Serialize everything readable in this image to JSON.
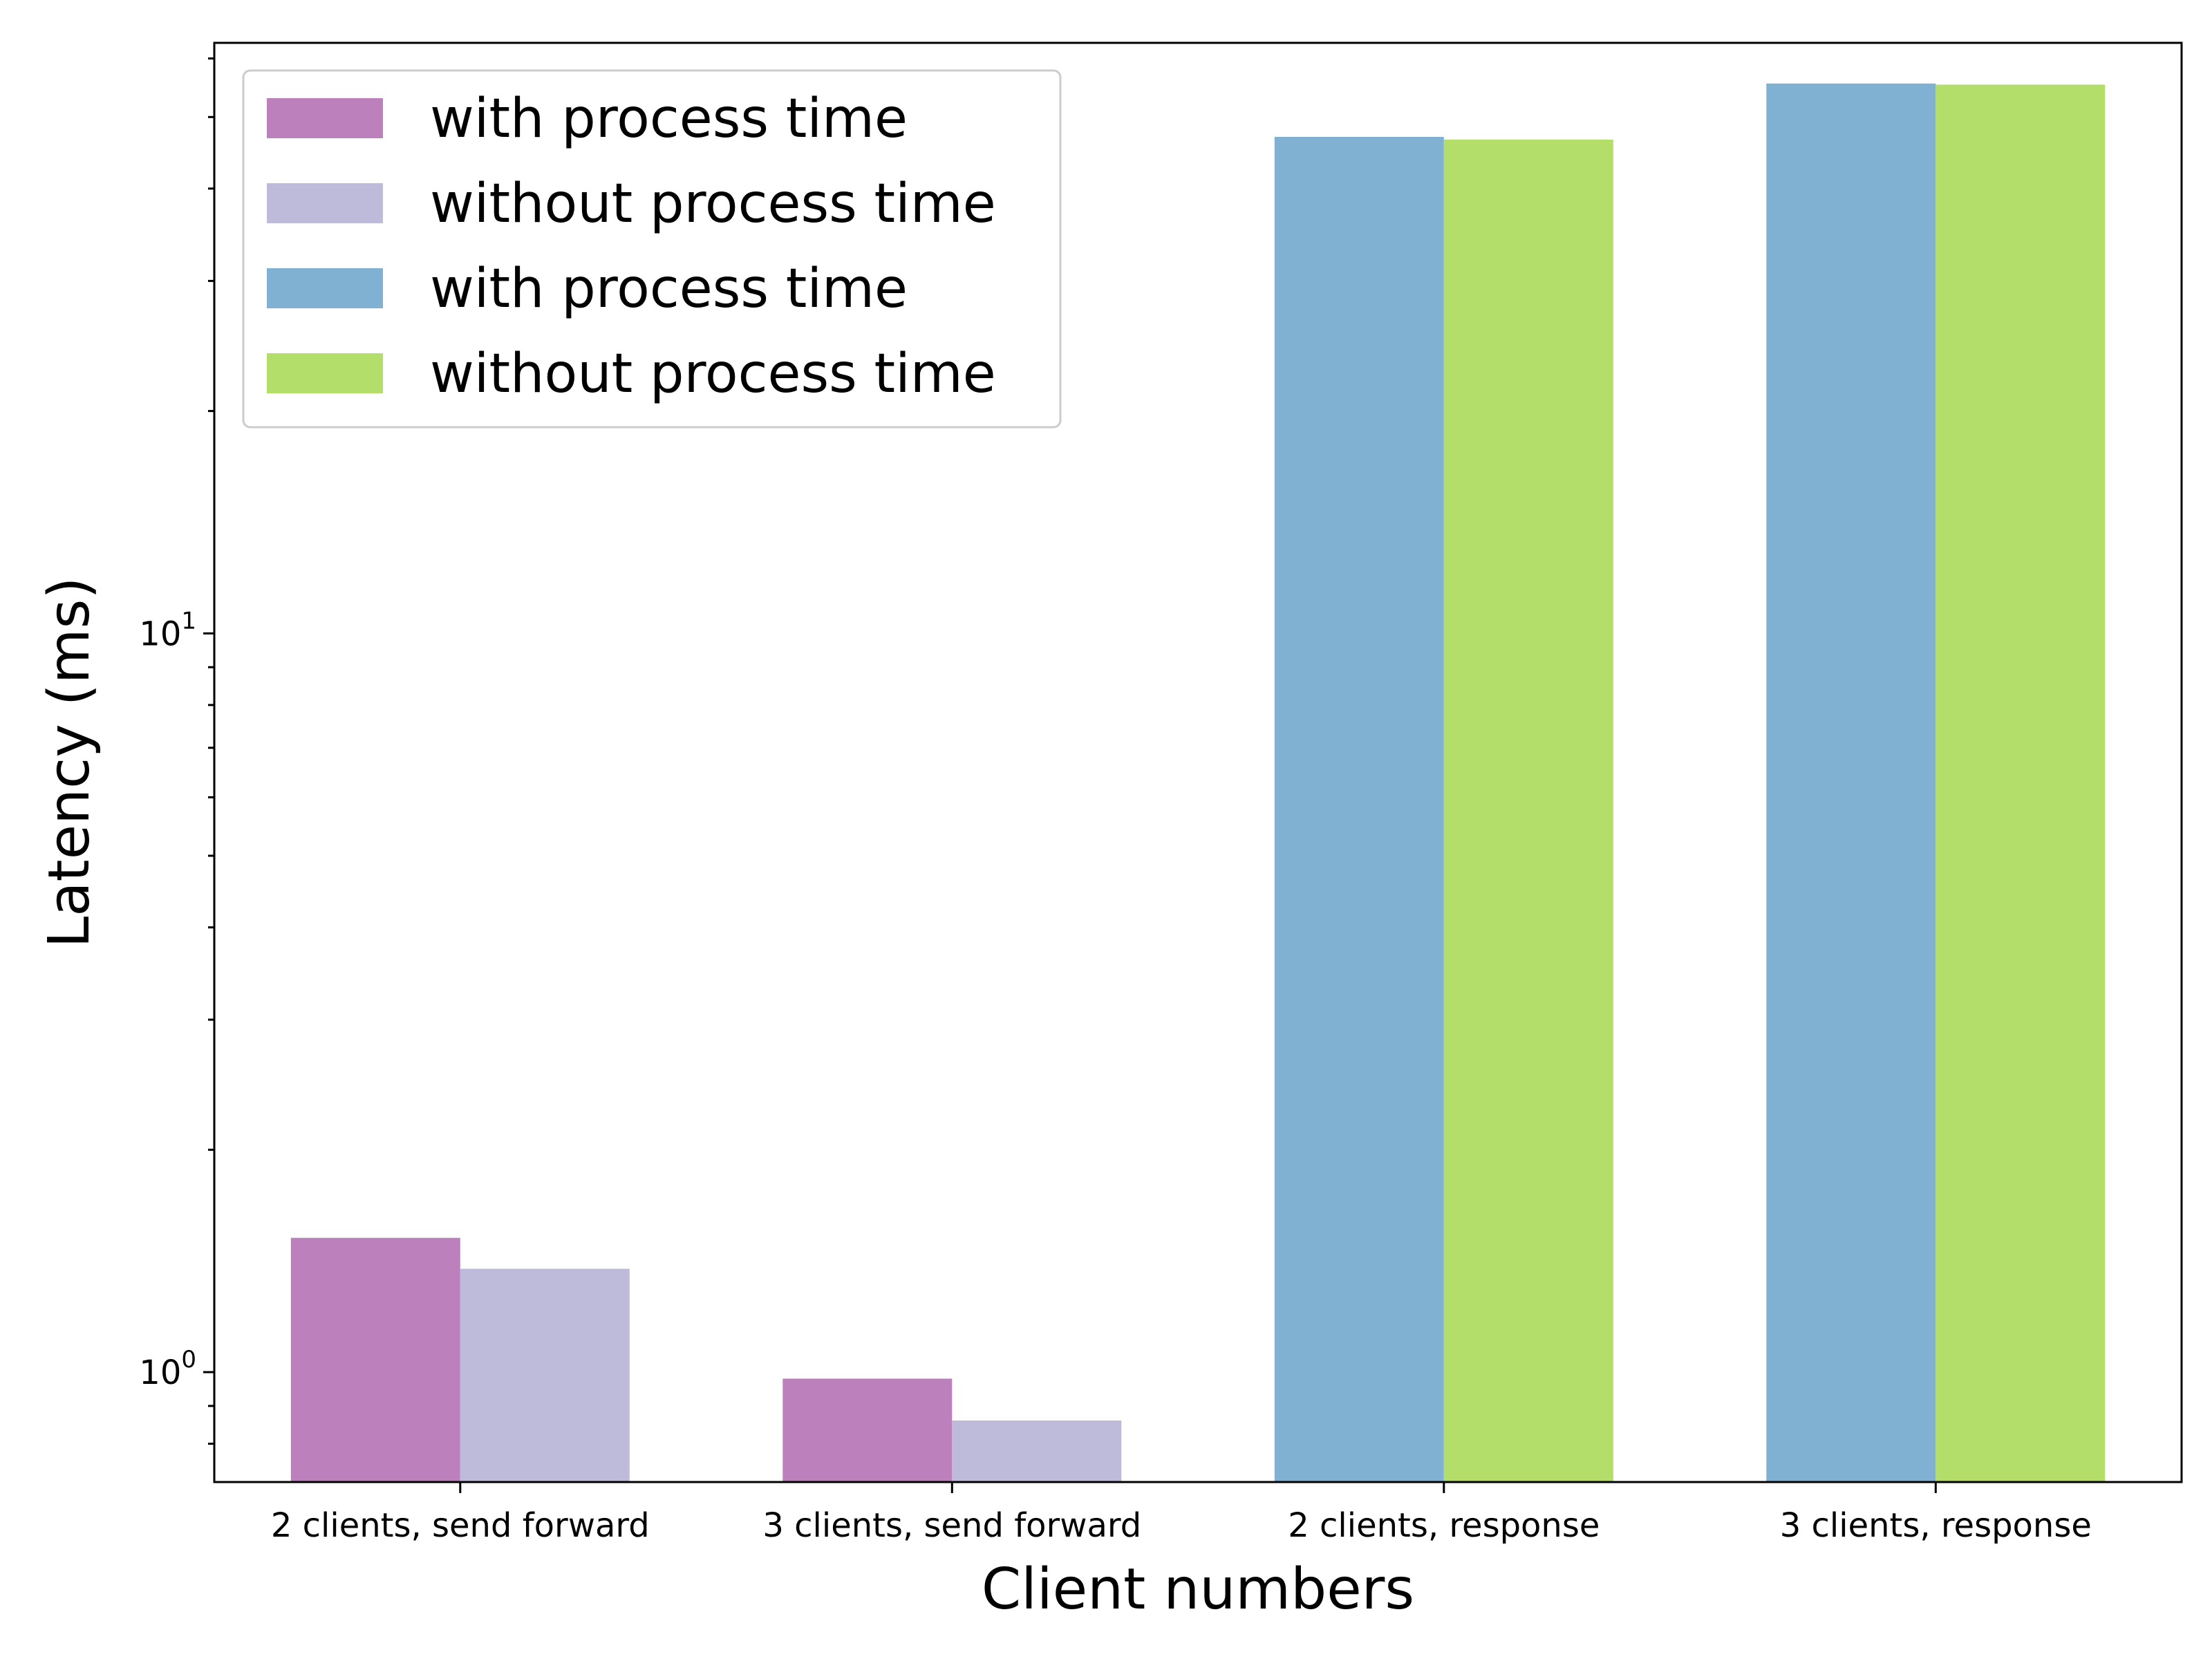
{
  "chart_data": {
    "type": "bar",
    "title": "",
    "xlabel": "Client numbers",
    "ylabel": "Latency (ms)",
    "yscale": "log",
    "ylim": [
      0.71,
      63
    ],
    "yticks": [
      {
        "value": 1,
        "base": "10",
        "exp": "0"
      },
      {
        "value": 10,
        "base": "10",
        "exp": "1"
      }
    ],
    "categories": [
      "2 clients, send forward",
      "3 clients, send forward",
      "2 clients, response",
      "3 clients, response"
    ],
    "series": [
      {
        "name": "with process time",
        "color": "#bc80bd",
        "values": [
          1.52,
          0.98,
          null,
          null
        ]
      },
      {
        "name": "without process time",
        "color": "#bebada",
        "values": [
          1.38,
          0.86,
          null,
          null
        ]
      },
      {
        "name": "with process time",
        "color": "#80b1d3",
        "values": [
          null,
          null,
          47.0,
          55.5
        ]
      },
      {
        "name": "without process time",
        "color": "#b3de69",
        "values": [
          null,
          null,
          46.6,
          55.3
        ]
      }
    ],
    "grid": false,
    "legend_position": "top-left"
  }
}
